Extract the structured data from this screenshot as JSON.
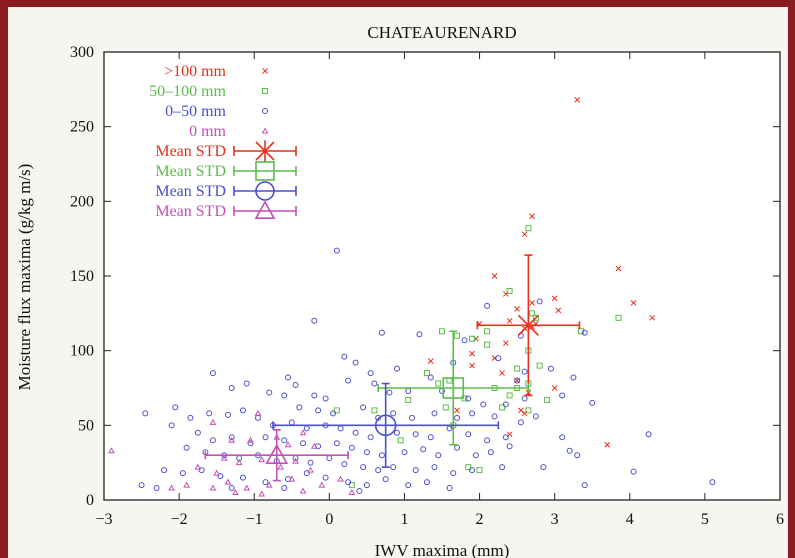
{
  "chart_data": {
    "type": "scatter",
    "title": "CHATEAURENARD",
    "xlabel": "IWV maxima (mm)",
    "ylabel": "Moisture flux maxima (g/kg m/s)",
    "xlim": [
      -3,
      6
    ],
    "ylim": [
      0,
      300
    ],
    "xticks": [
      "−3",
      "−2",
      "−1",
      "0",
      "1",
      "2",
      "3",
      "4",
      "5",
      "6"
    ],
    "yticks": [
      "0",
      "50",
      "100",
      "150",
      "200",
      "250",
      "300"
    ],
    "legend_position": "top-left",
    "grid": false,
    "series": [
      {
        "name": ">100 mm",
        "marker": "x",
        "color": "#e8301c",
        "points": [
          [
            3.3,
            268
          ],
          [
            2.7,
            190
          ],
          [
            2.6,
            178
          ],
          [
            2.2,
            150
          ],
          [
            2.35,
            138
          ],
          [
            3.85,
            155
          ],
          [
            3.0,
            135
          ],
          [
            2.7,
            132
          ],
          [
            2.5,
            128
          ],
          [
            3.05,
            127
          ],
          [
            4.05,
            132
          ],
          [
            4.3,
            122
          ],
          [
            2.4,
            120
          ],
          [
            2.7,
            116
          ],
          [
            2.0,
            118
          ],
          [
            1.95,
            108
          ],
          [
            2.6,
            115
          ],
          [
            1.9,
            98
          ],
          [
            2.75,
            118
          ],
          [
            1.35,
            93
          ],
          [
            1.9,
            90
          ],
          [
            2.3,
            85
          ],
          [
            2.5,
            80
          ],
          [
            2.65,
            72
          ],
          [
            3.0,
            75
          ],
          [
            1.7,
            60
          ],
          [
            2.55,
            60
          ],
          [
            2.6,
            58
          ],
          [
            2.4,
            44
          ],
          [
            3.7,
            37
          ],
          [
            2.35,
            105
          ],
          [
            2.2,
            95
          ]
        ]
      },
      {
        "name": "50–100 mm",
        "marker": "square",
        "color": "#5cbd4b",
        "points": [
          [
            2.65,
            182
          ],
          [
            2.4,
            140
          ],
          [
            2.7,
            125
          ],
          [
            2.75,
            122
          ],
          [
            3.85,
            122
          ],
          [
            3.35,
            113
          ],
          [
            1.5,
            113
          ],
          [
            2.1,
            113
          ],
          [
            1.7,
            110
          ],
          [
            1.9,
            108
          ],
          [
            2.1,
            104
          ],
          [
            2.65,
            100
          ],
          [
            1.3,
            85
          ],
          [
            1.6,
            80
          ],
          [
            2.2,
            75
          ],
          [
            2.5,
            75
          ],
          [
            2.65,
            78
          ],
          [
            2.8,
            90
          ],
          [
            2.4,
            70
          ],
          [
            2.3,
            62
          ],
          [
            2.65,
            60
          ],
          [
            2.9,
            67
          ],
          [
            1.8,
            68
          ],
          [
            1.05,
            67
          ],
          [
            0.1,
            60
          ],
          [
            0.6,
            60
          ],
          [
            1.45,
            78
          ],
          [
            1.55,
            62
          ],
          [
            1.85,
            22
          ],
          [
            2.0,
            20
          ],
          [
            0.95,
            40
          ],
          [
            0.3,
            10
          ],
          [
            2.5,
            88
          ],
          [
            1.65,
            50
          ]
        ]
      },
      {
        "name": "0–50 mm",
        "marker": "circle",
        "color": "#4a4fd0",
        "points": [
          [
            0.1,
            167
          ],
          [
            -0.2,
            120
          ],
          [
            0.7,
            112
          ],
          [
            1.2,
            111
          ],
          [
            1.8,
            107
          ],
          [
            2.8,
            133
          ],
          [
            2.1,
            130
          ],
          [
            2.55,
            110
          ],
          [
            3.4,
            112
          ],
          [
            0.2,
            96
          ],
          [
            0.35,
            92
          ],
          [
            0.55,
            85
          ],
          [
            0.9,
            88
          ],
          [
            1.35,
            82
          ],
          [
            1.65,
            92
          ],
          [
            2.25,
            95
          ],
          [
            2.5,
            80
          ],
          [
            2.6,
            86
          ],
          [
            2.95,
            88
          ],
          [
            3.25,
            82
          ],
          [
            -0.55,
            82
          ],
          [
            -0.45,
            77
          ],
          [
            -0.2,
            70
          ],
          [
            -0.05,
            68
          ],
          [
            0.25,
            80
          ],
          [
            0.6,
            78
          ],
          [
            0.8,
            72
          ],
          [
            1.05,
            73
          ],
          [
            1.5,
            73
          ],
          [
            1.85,
            68
          ],
          [
            2.05,
            64
          ],
          [
            2.35,
            64
          ],
          [
            2.6,
            68
          ],
          [
            2.75,
            56
          ],
          [
            3.1,
            70
          ],
          [
            -1.55,
            85
          ],
          [
            -1.3,
            75
          ],
          [
            -1.1,
            78
          ],
          [
            -0.8,
            72
          ],
          [
            -0.6,
            70
          ],
          [
            -0.4,
            62
          ],
          [
            -0.15,
            60
          ],
          [
            0.05,
            58
          ],
          [
            0.45,
            62
          ],
          [
            0.65,
            55
          ],
          [
            0.85,
            58
          ],
          [
            1.1,
            55
          ],
          [
            1.4,
            58
          ],
          [
            1.7,
            55
          ],
          [
            1.9,
            58
          ],
          [
            2.2,
            56
          ],
          [
            2.55,
            52
          ],
          [
            3.5,
            65
          ],
          [
            -2.05,
            62
          ],
          [
            -1.85,
            55
          ],
          [
            -1.6,
            58
          ],
          [
            -1.35,
            57
          ],
          [
            -1.15,
            60
          ],
          [
            -0.95,
            55
          ],
          [
            -0.75,
            50
          ],
          [
            -0.5,
            52
          ],
          [
            -0.3,
            48
          ],
          [
            -0.05,
            50
          ],
          [
            0.15,
            48
          ],
          [
            0.35,
            45
          ],
          [
            0.55,
            42
          ],
          [
            0.9,
            45
          ],
          [
            1.15,
            44
          ],
          [
            1.35,
            42
          ],
          [
            1.6,
            48
          ],
          [
            1.85,
            44
          ],
          [
            2.1,
            40
          ],
          [
            2.35,
            42
          ],
          [
            3.1,
            42
          ],
          [
            4.25,
            44
          ],
          [
            -2.45,
            58
          ],
          [
            -2.1,
            50
          ],
          [
            -1.75,
            45
          ],
          [
            -1.55,
            40
          ],
          [
            -1.3,
            42
          ],
          [
            -1.05,
            38
          ],
          [
            -0.85,
            42
          ],
          [
            -0.6,
            40
          ],
          [
            -0.35,
            38
          ],
          [
            -0.15,
            36
          ],
          [
            0.1,
            38
          ],
          [
            0.3,
            35
          ],
          [
            0.5,
            32
          ],
          [
            0.7,
            30
          ],
          [
            1.0,
            32
          ],
          [
            1.25,
            34
          ],
          [
            1.45,
            30
          ],
          [
            1.7,
            35
          ],
          [
            1.95,
            30
          ],
          [
            2.15,
            32
          ],
          [
            2.4,
            36
          ],
          [
            3.2,
            33
          ],
          [
            -1.9,
            35
          ],
          [
            -1.65,
            32
          ],
          [
            -1.4,
            30
          ],
          [
            -1.2,
            28
          ],
          [
            -0.95,
            30
          ],
          [
            -0.7,
            26
          ],
          [
            -0.45,
            28
          ],
          [
            -0.25,
            25
          ],
          [
            0.0,
            28
          ],
          [
            0.2,
            24
          ],
          [
            0.45,
            22
          ],
          [
            0.65,
            20
          ],
          [
            0.85,
            22
          ],
          [
            1.15,
            20
          ],
          [
            1.4,
            22
          ],
          [
            1.65,
            18
          ],
          [
            1.9,
            20
          ],
          [
            2.3,
            22
          ],
          [
            2.85,
            22
          ],
          [
            3.3,
            30
          ],
          [
            4.05,
            19
          ],
          [
            -2.2,
            20
          ],
          [
            -1.95,
            18
          ],
          [
            -1.7,
            20
          ],
          [
            -1.45,
            16
          ],
          [
            -1.15,
            15
          ],
          [
            -0.85,
            12
          ],
          [
            -0.55,
            14
          ],
          [
            -0.3,
            18
          ],
          [
            -0.05,
            15
          ],
          [
            0.25,
            12
          ],
          [
            0.5,
            10
          ],
          [
            0.75,
            14
          ],
          [
            1.05,
            10
          ],
          [
            1.3,
            12
          ],
          [
            -2.5,
            10
          ],
          [
            -2.3,
            8
          ],
          [
            -1.3,
            8
          ],
          [
            -0.6,
            8
          ],
          [
            0.4,
            6
          ],
          [
            1.6,
            8
          ],
          [
            3.4,
            10
          ],
          [
            5.1,
            12
          ]
        ]
      },
      {
        "name": "0 mm",
        "marker": "triangle",
        "color": "#c44fb5",
        "points": [
          [
            -2.9,
            33
          ],
          [
            -1.55,
            52
          ],
          [
            -1.3,
            40
          ],
          [
            -1.05,
            40
          ],
          [
            -0.95,
            58
          ],
          [
            -0.7,
            42
          ],
          [
            -0.55,
            37
          ],
          [
            -0.35,
            45
          ],
          [
            -0.2,
            36
          ],
          [
            -1.4,
            28
          ],
          [
            -1.2,
            25
          ],
          [
            -0.9,
            27
          ],
          [
            -0.65,
            22
          ],
          [
            -0.45,
            26
          ],
          [
            -0.25,
            20
          ],
          [
            -1.5,
            18
          ],
          [
            -1.35,
            12
          ],
          [
            -1.1,
            8
          ],
          [
            -0.8,
            10
          ],
          [
            -0.5,
            14
          ],
          [
            0.15,
            14
          ],
          [
            -2.1,
            8
          ],
          [
            -1.9,
            10
          ],
          [
            -1.25,
            5
          ],
          [
            -0.9,
            4
          ],
          [
            -0.35,
            6
          ],
          [
            0.3,
            5
          ],
          [
            -0.1,
            10
          ],
          [
            -1.75,
            22
          ],
          [
            -1.55,
            8
          ]
        ]
      },
      {
        "name": "Mean STD",
        "color": "#e8301c",
        "marker": "asterisk",
        "mean": [
          2.65,
          117
        ],
        "xstd": 0.68,
        "ystd": 47
      },
      {
        "name": "Mean STD",
        "color": "#5cbd4b",
        "marker": "square",
        "mean": [
          1.65,
          75
        ],
        "xstd": 1.0,
        "ystd": 38
      },
      {
        "name": "Mean STD",
        "color": "#4a4fd0",
        "marker": "circle",
        "mean": [
          0.75,
          50
        ],
        "xstd": 1.5,
        "ystd": 28
      },
      {
        "name": "Mean STD",
        "color": "#c44fb5",
        "marker": "triangle",
        "mean": [
          -0.7,
          30
        ],
        "xstd": 0.95,
        "ystd": 17
      }
    ]
  }
}
